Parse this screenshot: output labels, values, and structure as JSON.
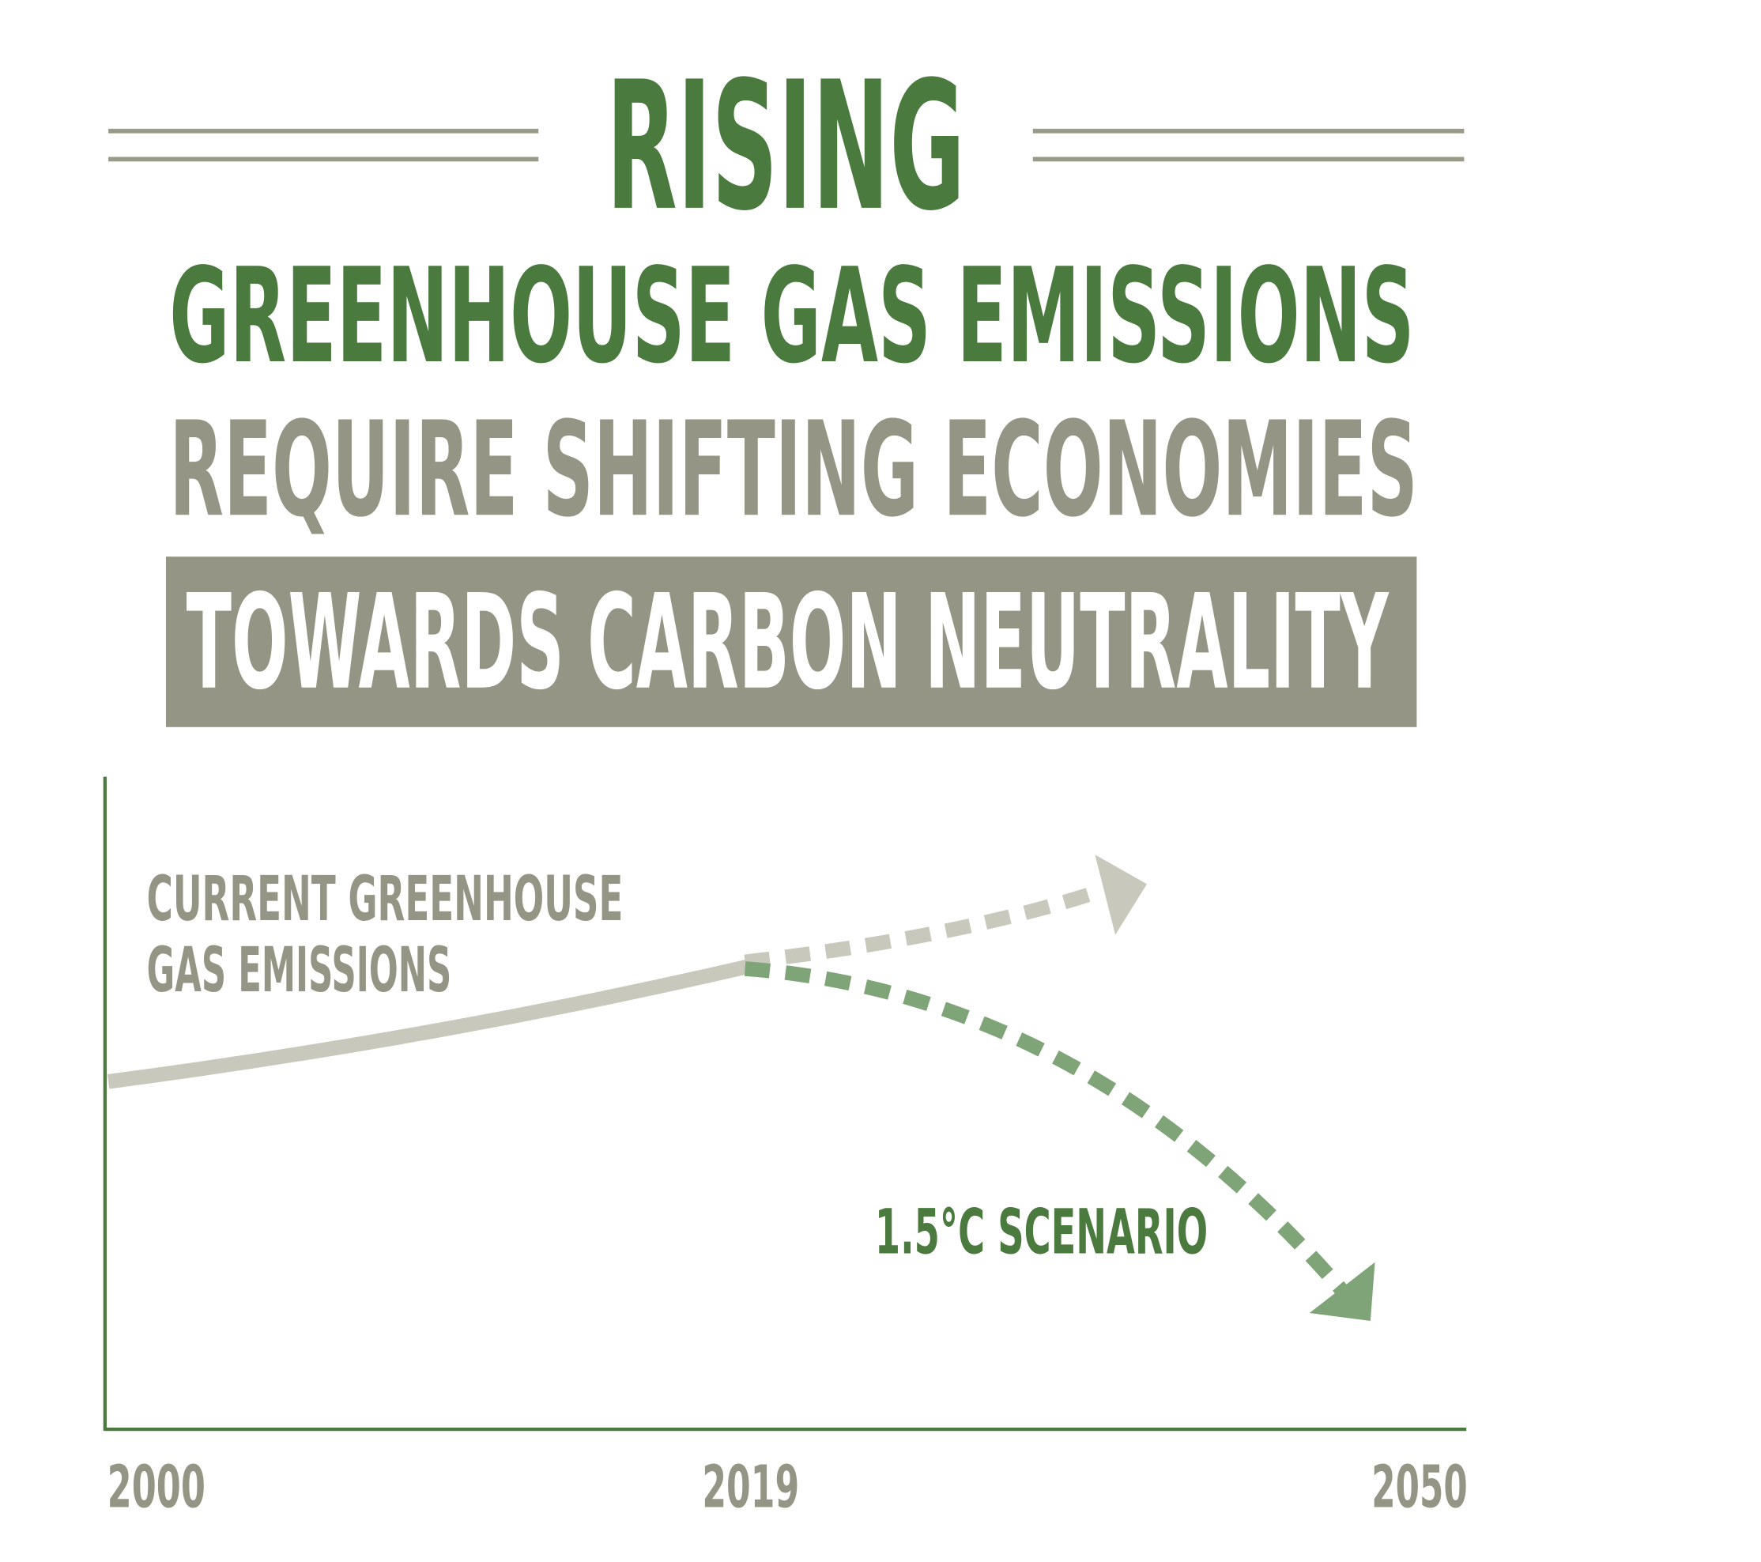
{
  "header": {
    "title": "RISING",
    "line1": "GREENHOUSE GAS EMISSIONS",
    "line2": "REQUIRE SHIFTING ECONOMIES",
    "banner": "TOWARDS CARBON NEUTRALITY"
  },
  "graphic": {
    "current_label": [
      "CURRENT GREENHOUSE",
      "GAS EMISSIONS"
    ],
    "scenario_label": "1.5°C SCENARIO",
    "x_labels": [
      "2000",
      "2019",
      "2050"
    ]
  }
}
